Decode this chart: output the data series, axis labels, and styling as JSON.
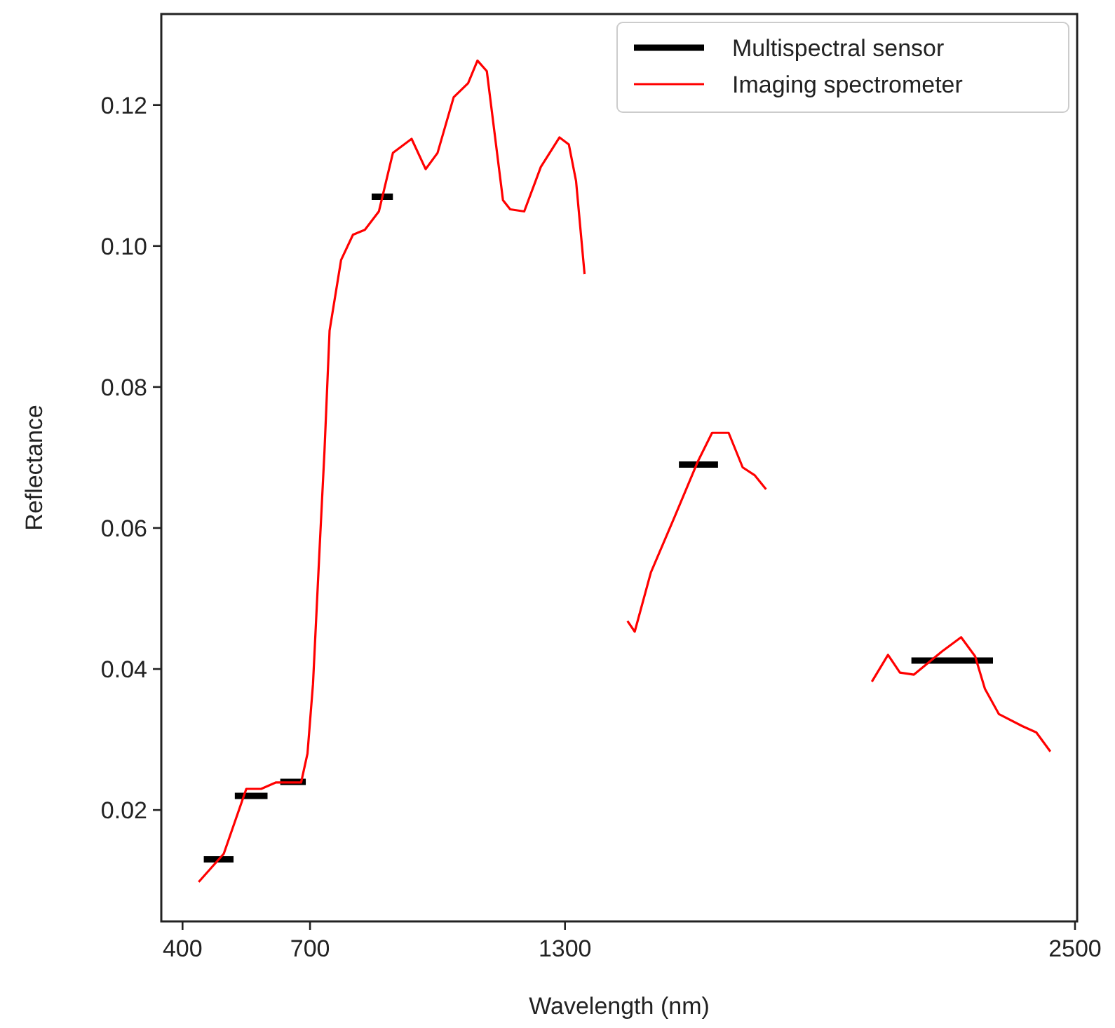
{
  "chart_data": {
    "type": "line",
    "xlabel": "Wavelength (nm)",
    "ylabel": "Reflectance",
    "xlim": [
      350,
      2505
    ],
    "xticks": [
      400,
      700,
      1300,
      2500
    ],
    "ylim": [
      0.0042,
      0.1329
    ],
    "yticks": [
      {
        "value": 0.02,
        "label": "0.02"
      },
      {
        "value": 0.04,
        "label": "0.04"
      },
      {
        "value": 0.06,
        "label": "0.06"
      },
      {
        "value": 0.08,
        "label": "0.08"
      },
      {
        "value": 0.1,
        "label": "0.10"
      },
      {
        "value": 0.12,
        "label": "0.12"
      }
    ],
    "legend": "top right",
    "grid": false,
    "marker": "none",
    "series": [
      {
        "name": "Multispectral sensor",
        "color": "#000000",
        "x": [
          450,
          520,
          521,
          523,
          600,
          601,
          630,
          690,
          691,
          845,
          895,
          896,
          1568,
          1660,
          1661,
          2115,
          2307
        ],
        "values": [
          0.013,
          0.013,
          null,
          0.022,
          0.022,
          null,
          0.024,
          0.024,
          null,
          0.107,
          0.107,
          null,
          0.069,
          0.069,
          null,
          0.0412,
          0.0412
        ]
      },
      {
        "name": "Imaging spectrometer",
        "color": "#ff0000",
        "x": [
          438,
          497,
          550,
          585,
          619,
          679,
          694,
          707,
          723,
          734,
          746,
          773,
          801,
          829,
          862,
          895,
          939,
          972,
          1000,
          1038,
          1072,
          1094,
          1116,
          1154,
          1171,
          1204,
          1243,
          1287,
          1309,
          1326,
          1346,
          1400,
          1447,
          1464,
          1502,
          1558,
          1613,
          1646,
          1685,
          1718,
          1746,
          1773,
          1900,
          2022,
          2060,
          2088,
          2121,
          2187,
          2232,
          2265,
          2288,
          2321,
          2376,
          2409,
          2442
        ],
        "values": [
          0.0098,
          0.0138,
          0.023,
          0.023,
          0.0239,
          0.0239,
          0.028,
          0.0379,
          0.0577,
          0.0709,
          0.088,
          0.098,
          0.1016,
          0.1023,
          0.1049,
          0.1132,
          0.1152,
          0.1109,
          0.1132,
          0.1211,
          0.1231,
          0.1263,
          0.1248,
          0.1065,
          0.1052,
          0.1049,
          0.1112,
          0.1154,
          0.1144,
          0.1092,
          0.096,
          null,
          0.0468,
          0.0453,
          0.0537,
          0.0616,
          0.0695,
          0.0735,
          0.0735,
          0.0686,
          0.0675,
          0.0655,
          null,
          0.0382,
          0.042,
          0.0395,
          0.0392,
          0.0425,
          0.0445,
          0.0418,
          0.0372,
          0.0336,
          0.0319,
          0.031,
          0.0283
        ]
      }
    ]
  }
}
